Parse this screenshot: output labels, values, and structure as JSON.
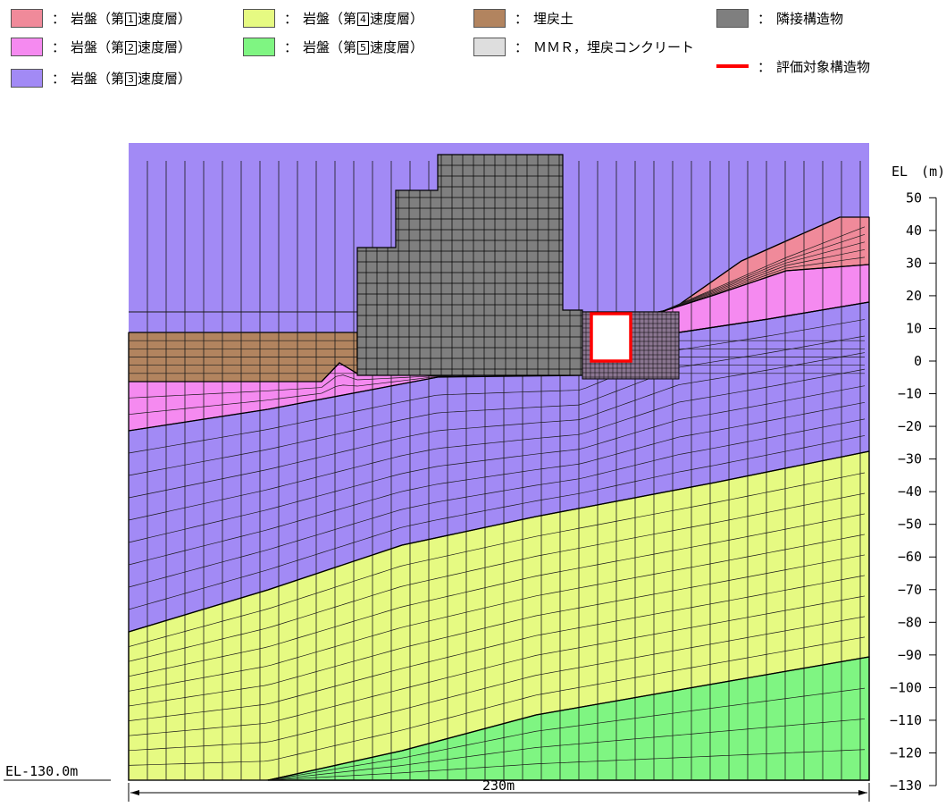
{
  "legend": {
    "colon": "：",
    "items": [
      {
        "key": "rock1",
        "prefix": "岩盤（第",
        "num": "1",
        "suffix": "速度層）",
        "color": "#f08a9a",
        "icon": "swatch"
      },
      {
        "key": "rock2",
        "prefix": "岩盤（第",
        "num": "2",
        "suffix": "速度層）",
        "color": "#f58af0",
        "icon": "swatch"
      },
      {
        "key": "rock3",
        "prefix": "岩盤（第",
        "num": "3",
        "suffix": "速度層）",
        "color": "#a28af5",
        "icon": "swatch"
      },
      {
        "key": "rock4",
        "prefix": "岩盤（第",
        "num": "4",
        "suffix": "速度層）",
        "color": "#e6fa82",
        "icon": "swatch"
      },
      {
        "key": "rock5",
        "prefix": "岩盤（第",
        "num": "5",
        "suffix": "速度層）",
        "color": "#7ff582",
        "icon": "swatch"
      },
      {
        "key": "backfill",
        "prefix": "埋戻土",
        "num": "",
        "suffix": "",
        "color": "#b2845f",
        "icon": "swatch"
      },
      {
        "key": "mmr",
        "prefix": "ＭＭＲ，埋戻コンクリート",
        "num": "",
        "suffix": "",
        "color": "#dedede",
        "icon": "swatch"
      },
      {
        "key": "adjacent",
        "prefix": "隣接構造物",
        "num": "",
        "suffix": "",
        "color": "#7f7f7f",
        "icon": "swatch"
      },
      {
        "key": "target",
        "prefix": "評価対象構造物",
        "num": "",
        "suffix": "",
        "color": "#ff0000",
        "icon": "red-line"
      }
    ]
  },
  "axis": {
    "title": "EL　(m)",
    "ticks": [
      50,
      40,
      30,
      20,
      10,
      0,
      -10,
      -20,
      -30,
      -40,
      -50,
      -60,
      -70,
      -80,
      -90,
      -100,
      -110,
      -120,
      -130
    ],
    "bottom_label": "EL-130.0m",
    "width_label": "230m"
  }
}
